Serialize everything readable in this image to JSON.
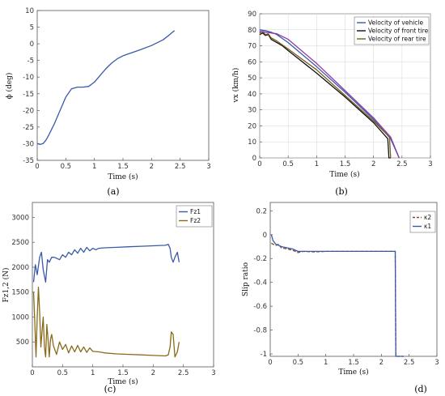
{
  "chart_data": [
    {
      "id": "a",
      "type": "line",
      "panel_label": "(a)",
      "xlabel": "Time (s)",
      "ylabel": "ϕ (deg)",
      "xlim": [
        0,
        3
      ],
      "ylim": [
        -35,
        10
      ],
      "xticks": [
        0,
        0.5,
        1,
        1.5,
        2,
        2.5,
        3
      ],
      "yticks": [
        -35,
        -30,
        -25,
        -20,
        -15,
        -10,
        -5,
        0,
        5,
        10
      ],
      "grid": false,
      "series": [
        {
          "color": "#3a5aa8",
          "x": [
            0,
            0.05,
            0.1,
            0.15,
            0.2,
            0.3,
            0.4,
            0.5,
            0.6,
            0.7,
            0.8,
            0.9,
            1.0,
            1.1,
            1.2,
            1.3,
            1.4,
            1.5,
            1.6,
            1.8,
            2.0,
            2.2,
            2.3,
            2.4
          ],
          "y": [
            -30,
            -30.2,
            -30,
            -29,
            -27.5,
            -24,
            -20,
            -16,
            -13.5,
            -13,
            -13,
            -12.8,
            -11.5,
            -9.5,
            -7.5,
            -5.8,
            -4.5,
            -3.6,
            -3,
            -1.8,
            -0.5,
            1.2,
            2.5,
            4
          ]
        }
      ]
    },
    {
      "id": "b",
      "type": "line",
      "panel_label": "(b)",
      "xlabel": "Time (s)",
      "ylabel": "vx (km/h)",
      "xlim": [
        0,
        3
      ],
      "ylim": [
        0,
        90
      ],
      "xticks": [
        0,
        0.5,
        1,
        1.5,
        2,
        2.5,
        3
      ],
      "yticks": [
        0,
        10,
        20,
        30,
        40,
        50,
        60,
        70,
        80,
        90
      ],
      "grid": true,
      "legend": "top-right",
      "series": [
        {
          "name": "Velocity of vehicle",
          "color": "#3a5aa8",
          "x": [
            0,
            0.1,
            0.2,
            0.3,
            0.5,
            1.0,
            1.5,
            2.0,
            2.3,
            2.45
          ],
          "y": [
            80,
            79.5,
            78.5,
            77,
            72,
            57,
            41,
            24,
            12,
            0
          ]
        },
        {
          "name": "Velocity of front tire",
          "color": "#111111",
          "x": [
            0,
            0.05,
            0.1,
            0.15,
            0.2,
            0.3,
            0.4,
            0.5,
            1.0,
            1.5,
            2.0,
            2.25,
            2.27,
            2.3
          ],
          "y": [
            77,
            78,
            76.5,
            77,
            74,
            72,
            70,
            67,
            53,
            38,
            22,
            12,
            0,
            0
          ]
        },
        {
          "name": "Velocity of rear tire",
          "color": "#7a5a1e",
          "x": [
            0,
            0.05,
            0.1,
            0.15,
            0.2,
            0.3,
            0.5,
            1.0,
            1.5,
            2.0,
            2.28,
            2.3
          ],
          "y": [
            78,
            79,
            77,
            77.5,
            75,
            73,
            68,
            55,
            39,
            23,
            13,
            0
          ]
        },
        {
          "color": "#8a3aa8",
          "x": [
            0,
            0.1,
            0.2,
            0.3,
            0.5,
            1.0,
            1.5,
            2.0,
            2.3,
            2.45
          ],
          "y": [
            79,
            78.5,
            78,
            77.5,
            74,
            59,
            42,
            25,
            13,
            0
          ]
        }
      ]
    },
    {
      "id": "c",
      "type": "line",
      "panel_label": "(c)",
      "xlabel": "Time (s)",
      "ylabel": "Fz1,2 (N)",
      "xlim": [
        0,
        3
      ],
      "ylim": [
        0,
        3300
      ],
      "xticks": [
        0,
        0.5,
        1,
        1.5,
        2,
        2.5,
        3
      ],
      "yticks": [
        500,
        1000,
        1500,
        2000,
        2500,
        3000
      ],
      "grid": false,
      "legend": "top-right",
      "series": [
        {
          "name": "Fz1",
          "color": "#3a5aa8",
          "x": [
            0.02,
            0.05,
            0.08,
            0.12,
            0.15,
            0.18,
            0.22,
            0.25,
            0.28,
            0.32,
            0.36,
            0.4,
            0.45,
            0.5,
            0.55,
            0.6,
            0.65,
            0.7,
            0.75,
            0.8,
            0.85,
            0.9,
            0.95,
            1.0,
            1.05,
            1.1,
            1.2,
            1.4,
            1.6,
            1.8,
            2.0,
            2.2,
            2.25,
            2.28,
            2.3,
            2.33,
            2.36,
            2.4,
            2.43
          ],
          "y": [
            1700,
            2050,
            1850,
            2200,
            2300,
            1950,
            1700,
            2150,
            2100,
            2200,
            2200,
            2180,
            2150,
            2250,
            2200,
            2300,
            2250,
            2350,
            2280,
            2380,
            2300,
            2400,
            2330,
            2380,
            2350,
            2380,
            2390,
            2400,
            2410,
            2420,
            2430,
            2440,
            2460,
            2380,
            2200,
            2100,
            2200,
            2300,
            2100
          ]
        },
        {
          "name": "Fz2",
          "color": "#8a6a1a",
          "x": [
            0.02,
            0.04,
            0.06,
            0.08,
            0.1,
            0.12,
            0.14,
            0.16,
            0.18,
            0.2,
            0.22,
            0.24,
            0.26,
            0.28,
            0.3,
            0.32,
            0.35,
            0.4,
            0.45,
            0.5,
            0.55,
            0.6,
            0.65,
            0.7,
            0.75,
            0.8,
            0.85,
            0.9,
            0.95,
            1.0,
            1.1,
            1.2,
            1.4,
            1.6,
            1.8,
            2.0,
            2.2,
            2.25,
            2.28,
            2.3,
            2.33,
            2.36,
            2.4,
            2.43
          ],
          "y": [
            1500,
            900,
            200,
            1000,
            1600,
            1100,
            400,
            700,
            1000,
            400,
            200,
            850,
            550,
            200,
            550,
            650,
            420,
            250,
            500,
            350,
            450,
            280,
            420,
            300,
            430,
            300,
            400,
            290,
            380,
            310,
            300,
            280,
            260,
            250,
            240,
            230,
            220,
            240,
            400,
            700,
            650,
            200,
            300,
            500
          ]
        }
      ]
    },
    {
      "id": "d",
      "type": "line",
      "panel_label": "(d)",
      "xlabel": "Time (s)",
      "ylabel": "Slip ratio",
      "xlim": [
        0,
        3
      ],
      "ylim": [
        -1.02,
        0.27
      ],
      "xticks": [
        0,
        0.5,
        1,
        1.5,
        2,
        2.5,
        3
      ],
      "yticks": [
        -1,
        -0.8,
        -0.6,
        -0.4,
        -0.2,
        0,
        0.2
      ],
      "grid": false,
      "legend": "top-right",
      "series": [
        {
          "name": "κ2",
          "color": "#7a4a2a",
          "dashed": true,
          "x": [
            0.02,
            0.05,
            0.1,
            0.15,
            0.2,
            0.3,
            0.4,
            0.5,
            0.6,
            0.8,
            1.0,
            1.5,
            2.0,
            2.25,
            2.26,
            2.4
          ],
          "y": [
            -0.07,
            -0.08,
            -0.09,
            -0.08,
            -0.11,
            -0.12,
            -0.13,
            -0.15,
            -0.14,
            -0.145,
            -0.14,
            -0.14,
            -0.14,
            -0.14,
            -1.02,
            -1.02
          ]
        },
        {
          "name": "κ1",
          "color": "#3a5aa8",
          "x": [
            0.02,
            0.05,
            0.1,
            0.15,
            0.2,
            0.3,
            0.4,
            0.5,
            0.6,
            0.8,
            1.0,
            1.5,
            2.0,
            2.25,
            2.26,
            2.4
          ],
          "y": [
            0.0,
            -0.05,
            -0.08,
            -0.09,
            -0.1,
            -0.11,
            -0.12,
            -0.14,
            -0.14,
            -0.14,
            -0.14,
            -0.14,
            -0.14,
            -0.14,
            -1.02,
            -1.02
          ]
        }
      ]
    }
  ]
}
